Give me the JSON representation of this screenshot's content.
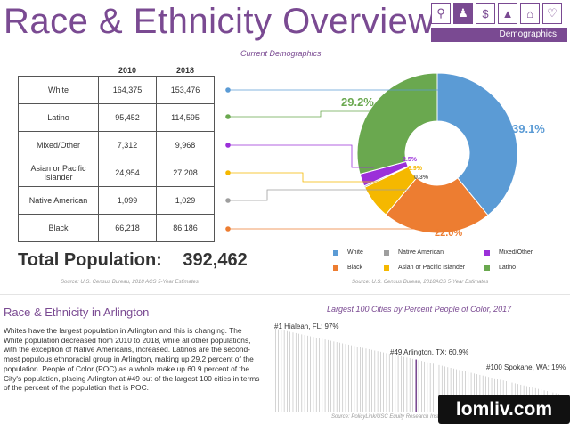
{
  "header": {
    "title": "Race & Ethnicity Overview",
    "nav_icons": [
      "search-icon",
      "people-icon",
      "money-icon",
      "education-icon",
      "house-icon",
      "health-icon",
      "heart-icon"
    ],
    "nav_active_label": "Demographics"
  },
  "table": {
    "col_2010": "2010",
    "col_2018": "2018",
    "rows": [
      {
        "label": "White",
        "v2010": "164,375",
        "v2018": "153,476",
        "color": "#5b9bd5"
      },
      {
        "label": "Latino",
        "v2010": "95,452",
        "v2018": "114,595",
        "color": "#6aa84f"
      },
      {
        "label": "Mixed/Other",
        "v2010": "7,312",
        "v2018": "9,968",
        "color": "#9b30d9"
      },
      {
        "label": "Asian or Pacific Islander",
        "v2010": "24,954",
        "v2018": "27,208",
        "color": "#f5b800"
      },
      {
        "label": "Native American",
        "v2010": "1,099",
        "v2018": "1,029",
        "color": "#9e9e9e"
      },
      {
        "label": "Black",
        "v2010": "66,218",
        "v2018": "86,186",
        "color": "#ed7d31"
      }
    ]
  },
  "total": {
    "label": "Total Population:",
    "value": "392,462"
  },
  "sources": {
    "table": "Source: U.S. Census Bureau, 2018 ACS 5-Year Estimates",
    "donut": "Source: U.S. Census Bureau, 2018ACS 5-Year Estimates",
    "bar": "Source: PolicyLink/USC Equity Research Institute, National Equity Atlas"
  },
  "narrative": {
    "title": "Race & Ethnicity in Arlington",
    "text": "Whites have the largest population in Arlington and this is changing. The White population decreased from 2010 to 2018, while all other populations, with the exception of Native Americans, increased. Latinos are the second-most populous ethnoracial group in Arlington, making up 29.2 percent of the population. People of Color (POC) as a whole make up 60.9 percent of the City's population, placing Arlington at #49 out of the largest 100 cities in terms of the percent of the population that is POC."
  },
  "watermark": "lomliv.com",
  "chart_data": [
    {
      "type": "pie",
      "subtitle": "Current Demographics",
      "labels": [
        "White",
        "Black",
        "Asian or Pacific Islander",
        "Native American",
        "Mixed/Other",
        "Latino"
      ],
      "values": [
        39.1,
        22.0,
        6.9,
        0.3,
        2.5,
        29.2
      ],
      "value_labels": [
        "39.1%",
        "22.0%",
        "6.9%",
        "0.3%",
        "2.5%",
        "29.2%"
      ],
      "colors": [
        "#5b9bd5",
        "#ed7d31",
        "#f5b800",
        "#9e9e9e",
        "#9b30d9",
        "#6aa84f"
      ],
      "legend_order": [
        "White",
        "Native American",
        "Mixed/Other",
        "Black",
        "Asian or Pacific Islander",
        "Latino"
      ],
      "legend_placement": "bottom"
    },
    {
      "type": "bar",
      "title": "Largest 100 Cities by Percent People of Color, 2017",
      "n_bars": 100,
      "highlight_index": 48,
      "ylim": [
        0,
        100
      ],
      "annotations": [
        {
          "rank": 1,
          "label": "#1 Hialeah, FL: 97%",
          "value": 97
        },
        {
          "rank": 49,
          "label": "#49 Arlington, TX: 60.9%",
          "value": 60.9
        },
        {
          "rank": 100,
          "label": "#100 Spokane, WA: 19%",
          "value": 19
        }
      ]
    }
  ]
}
